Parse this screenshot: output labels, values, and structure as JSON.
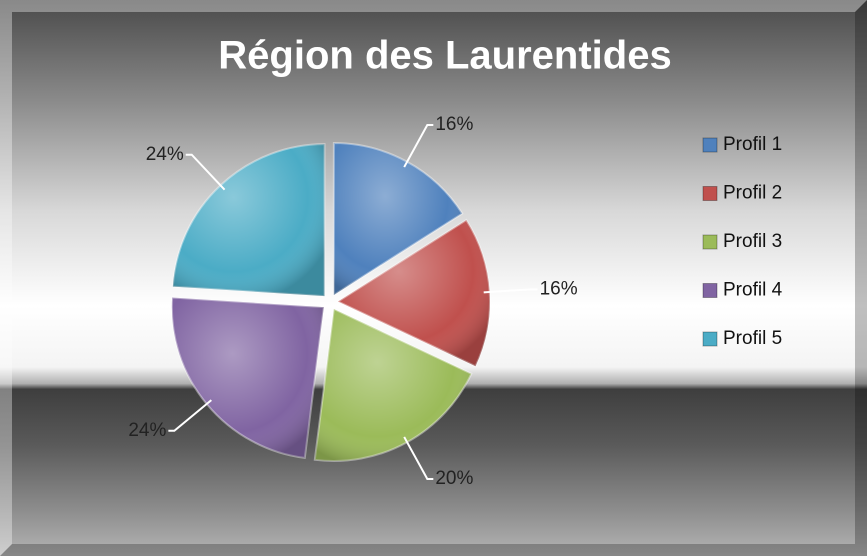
{
  "chart_data": {
    "type": "pie",
    "title": "Région des Laurentides",
    "categories": [
      "Profil 1",
      "Profil 2",
      "Profil 3",
      "Profil 4",
      "Profil 5"
    ],
    "values": [
      16,
      16,
      20,
      24,
      24
    ],
    "value_labels": [
      "16%",
      "16%",
      "20%",
      "24%",
      "24%"
    ],
    "colors": [
      "#4f81bd",
      "#c0504d",
      "#9bbb59",
      "#8064a2",
      "#4bacc6"
    ],
    "legend": "right"
  }
}
